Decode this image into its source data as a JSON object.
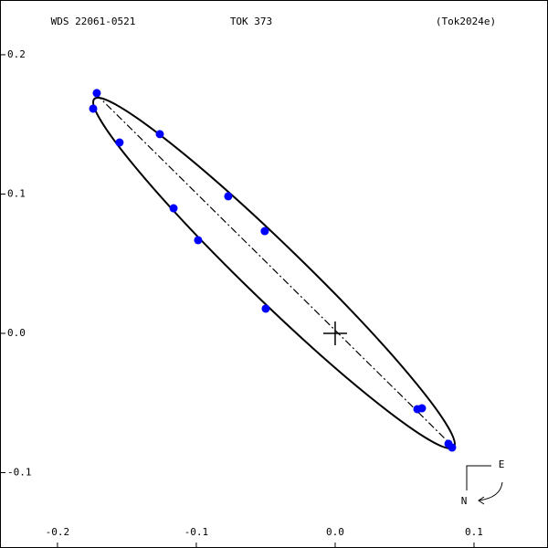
{
  "chart_data": {
    "type": "scatter",
    "header": [
      "WDS 22061-0521",
      "TOK 373",
      "(Tok2024e)"
    ],
    "x": [
      -0.1717,
      -0.1743,
      -0.1553,
      -0.1263,
      -0.077,
      -0.1164,
      -0.0507,
      -0.0987,
      -0.05,
      0.0592,
      0.0625,
      0.0816,
      0.0842
    ],
    "values": [
      0.1725,
      0.1613,
      0.137,
      0.143,
      0.0984,
      0.0898,
      0.0734,
      0.0669,
      0.0177,
      -0.0544,
      -0.0538,
      -0.0793,
      -0.082
    ],
    "color": "#0000ff",
    "xlim": [
      -0.2414,
      0.1533
    ],
    "ylim": [
      -0.1541,
      0.2393
    ],
    "xticks": [
      -0.2,
      -0.1,
      {
        "value": 0,
        "label": "0.0"
      },
      0.1
    ],
    "yticks": [
      0.2,
      0.1,
      {
        "value": 0,
        "label": "0.0"
      },
      -0.1
    ],
    "compass": [
      "E",
      "N"
    ]
  }
}
